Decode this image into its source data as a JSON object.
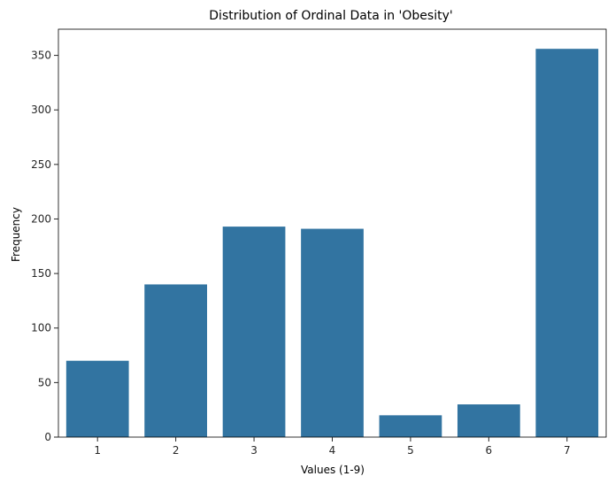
{
  "chart_data": {
    "type": "bar",
    "title": "Distribution of Ordinal Data in 'Obesity'",
    "xlabel": "Values (1-9)",
    "ylabel": "Frequency",
    "categories": [
      "1",
      "2",
      "3",
      "4",
      "5",
      "6",
      "7"
    ],
    "values": [
      70,
      140,
      193,
      191,
      20,
      30,
      356
    ],
    "ylim": [
      0,
      374
    ],
    "yticks": [
      0,
      50,
      100,
      150,
      200,
      250,
      300,
      350
    ],
    "bar_color": "#3274a1",
    "grid": false,
    "legend": "none"
  }
}
